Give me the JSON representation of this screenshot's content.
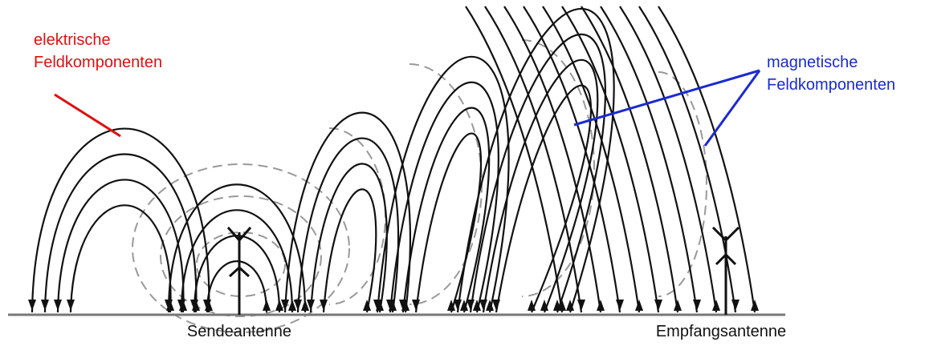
{
  "labels": {
    "electric": [
      "elektrische",
      "Feldkomponenten"
    ],
    "magnetic": [
      "magnetische",
      "Feldkomponenten"
    ],
    "transmitter": "Sendeantenne",
    "receiver": "Empfangsantenne"
  }
}
